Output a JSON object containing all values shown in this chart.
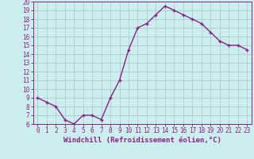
{
  "x": [
    0,
    1,
    2,
    3,
    4,
    5,
    6,
    7,
    8,
    9,
    10,
    11,
    12,
    13,
    14,
    15,
    16,
    17,
    18,
    19,
    20,
    21,
    22,
    23
  ],
  "y": [
    9.0,
    8.5,
    8.0,
    6.5,
    6.0,
    7.0,
    7.0,
    6.5,
    9.0,
    11.0,
    14.5,
    17.0,
    17.5,
    18.5,
    19.5,
    19.0,
    18.5,
    18.0,
    17.5,
    16.5,
    15.5,
    15.0,
    15.0,
    14.5
  ],
  "color": "#882288",
  "bg_color": "#cceeee",
  "grid_color": "#aacccc",
  "xlabel": "Windchill (Refroidissement éolien,°C)",
  "ylim": [
    6,
    20
  ],
  "xlim": [
    -0.5,
    23.5
  ],
  "yticks": [
    6,
    7,
    8,
    9,
    10,
    11,
    12,
    13,
    14,
    15,
    16,
    17,
    18,
    19,
    20
  ],
  "xticks": [
    0,
    1,
    2,
    3,
    4,
    5,
    6,
    7,
    8,
    9,
    10,
    11,
    12,
    13,
    14,
    15,
    16,
    17,
    18,
    19,
    20,
    21,
    22,
    23
  ],
  "line_color": "#882288",
  "marker": "+",
  "marker_size": 3.5,
  "line_width": 1.0,
  "tick_fontsize": 5.5,
  "xlabel_fontsize": 6.5
}
